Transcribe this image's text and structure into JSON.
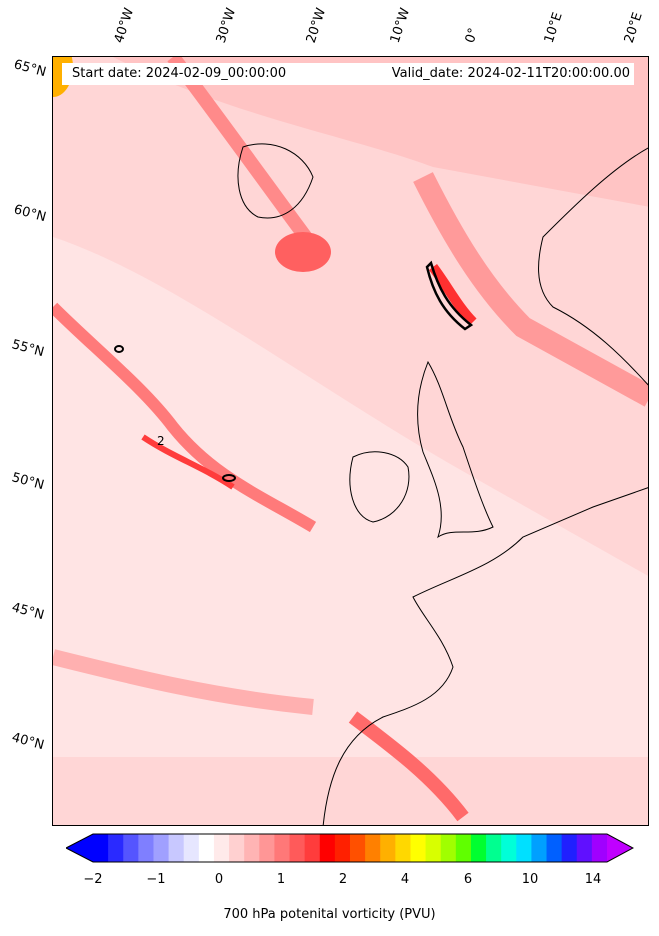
{
  "header": {
    "start_date": "Start date: 2024-02-09_00:00:00",
    "valid_date": "Valid_date: 2024-02-11T20:00:00.00"
  },
  "latitude_labels": [
    "65°N",
    "60°N",
    "55°N",
    "50°N",
    "45°N",
    "40°N"
  ],
  "longitude_labels": [
    "40°W",
    "30°W",
    "20°W",
    "10°W",
    "0°",
    "10°E",
    "20°E"
  ],
  "contour_label": "2",
  "colorbar": {
    "title": "700 hPa potenital vorticity (PVU)",
    "ticks": [
      "−2",
      "−1",
      "0",
      "1",
      "2",
      "4",
      "6",
      "10",
      "14"
    ],
    "colors": [
      "#0000ff",
      "#2a2aff",
      "#5555ff",
      "#7f7fff",
      "#a0a0ff",
      "#c8c8ff",
      "#e6e6ff",
      "#ffffff",
      "#ffeaea",
      "#ffd0d0",
      "#ffb4b4",
      "#ff9696",
      "#ff7878",
      "#ff5a5a",
      "#ff3c3c",
      "#ff0000",
      "#ff2000",
      "#ff5000",
      "#ff8000",
      "#ffb000",
      "#ffd800",
      "#ffff00",
      "#d8ff00",
      "#a0ff00",
      "#60ff00",
      "#00ff30",
      "#00ff90",
      "#00ffd8",
      "#00e0ff",
      "#00a0ff",
      "#0060ff",
      "#2020ff",
      "#6010ff",
      "#a000ff"
    ],
    "under_color": "#0000ff",
    "over_color": "#c000ff"
  },
  "colors": {
    "background_field": "#ffd9d9",
    "weak_field": "#ffeaea",
    "strong_field": "#ff6a6a",
    "coastline": "#000000"
  }
}
